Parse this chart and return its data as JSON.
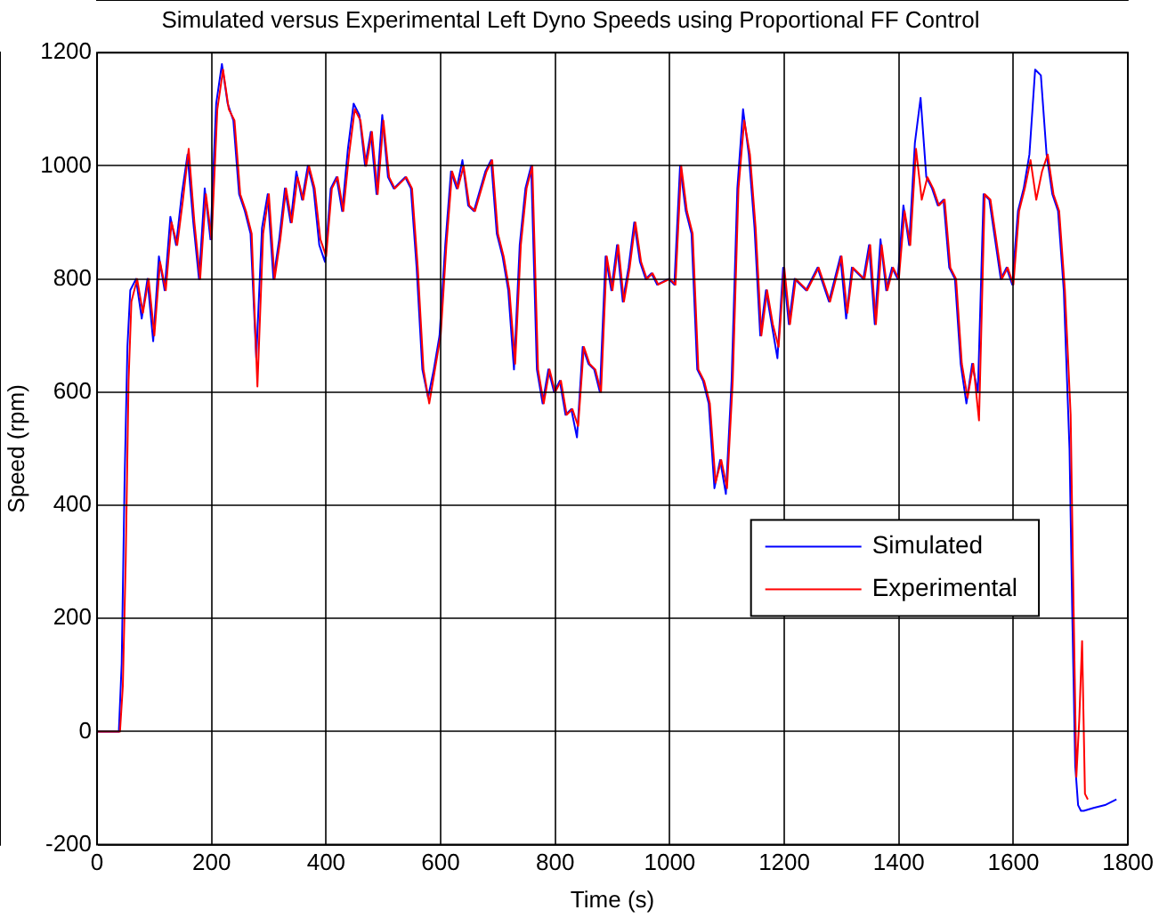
{
  "chart_data": {
    "type": "line",
    "title": "Simulated versus Experimental Left Dyno Speeds using Proportional FF Control",
    "xlabel": "Time (s)",
    "ylabel": "Speed (rpm)",
    "xlim": [
      0,
      1800
    ],
    "xticks": [
      0,
      200,
      400,
      600,
      800,
      1000,
      1200,
      1400,
      1600,
      1800
    ],
    "ylim": [
      -200,
      1200
    ],
    "yticks": [
      -200,
      0,
      200,
      400,
      600,
      800,
      1000,
      1200
    ],
    "grid": true,
    "legend": "right",
    "marker": "none",
    "line_style": "solid",
    "series": [
      {
        "name": "Simulated",
        "color": "#0000ff",
        "x": [
          0,
          38,
          43,
          48,
          53,
          58,
          68,
          78,
          88,
          98,
          108,
          118,
          128,
          138,
          148,
          158,
          168,
          178,
          188,
          198,
          208,
          218,
          228,
          238,
          248,
          258,
          268,
          278,
          288,
          298,
          308,
          318,
          328,
          338,
          348,
          358,
          368,
          378,
          388,
          398,
          408,
          418,
          428,
          438,
          448,
          458,
          468,
          478,
          488,
          498,
          508,
          518,
          538,
          548,
          558,
          568,
          578,
          588,
          598,
          608,
          618,
          628,
          638,
          648,
          658,
          678,
          688,
          698,
          708,
          718,
          728,
          738,
          748,
          758,
          768,
          778,
          788,
          798,
          808,
          818,
          828,
          838,
          848,
          858,
          868,
          878,
          888,
          898,
          908,
          918,
          928,
          938,
          948,
          958,
          968,
          978,
          998,
          1008,
          1018,
          1028,
          1038,
          1048,
          1058,
          1068,
          1078,
          1088,
          1098,
          1108,
          1118,
          1128,
          1138,
          1148,
          1158,
          1168,
          1178,
          1188,
          1198,
          1208,
          1218,
          1238,
          1258,
          1278,
          1298,
          1308,
          1318,
          1338,
          1348,
          1358,
          1368,
          1378,
          1388,
          1398,
          1408,
          1418,
          1428,
          1438,
          1448,
          1458,
          1468,
          1478,
          1488,
          1498,
          1508,
          1518,
          1528,
          1538,
          1548,
          1558,
          1568,
          1578,
          1588,
          1598,
          1608,
          1618,
          1628,
          1638,
          1648,
          1658,
          1668,
          1678,
          1688,
          1698,
          1703,
          1708,
          1713,
          1718,
          1723,
          1740,
          1760,
          1780
        ],
        "values": [
          0,
          0,
          120,
          440,
          680,
          780,
          800,
          730,
          800,
          690,
          840,
          780,
          910,
          860,
          950,
          1020,
          900,
          800,
          960,
          870,
          1110,
          1180,
          1110,
          1080,
          950,
          920,
          880,
          660,
          890,
          950,
          800,
          870,
          960,
          900,
          990,
          940,
          1000,
          960,
          860,
          830,
          960,
          980,
          920,
          1030,
          1110,
          1090,
          1000,
          1060,
          950,
          1090,
          980,
          960,
          980,
          960,
          820,
          640,
          590,
          640,
          700,
          860,
          990,
          960,
          1010,
          930,
          920,
          990,
          1010,
          880,
          840,
          780,
          640,
          860,
          960,
          1000,
          640,
          580,
          640,
          600,
          620,
          560,
          570,
          520,
          680,
          650,
          640,
          600,
          840,
          780,
          860,
          760,
          820,
          900,
          830,
          800,
          810,
          790,
          800,
          790,
          1000,
          920,
          880,
          640,
          620,
          580,
          430,
          480,
          420,
          620,
          960,
          1100,
          1020,
          890,
          700,
          780,
          720,
          660,
          820,
          720,
          800,
          780,
          820,
          760,
          840,
          730,
          820,
          800,
          860,
          720,
          870,
          780,
          820,
          800,
          930,
          860,
          1040,
          1120,
          980,
          960,
          930,
          940,
          820,
          800,
          650,
          580,
          650,
          600,
          950,
          940,
          870,
          800,
          820,
          790,
          920,
          960,
          1020,
          1170,
          1160,
          1020,
          950,
          920,
          780,
          500,
          200,
          -60,
          -130,
          -140,
          -140,
          -135,
          -130,
          -120
        ]
      },
      {
        "name": "Experimental",
        "color": "#ff0000",
        "x": [
          0,
          40,
          45,
          50,
          55,
          60,
          70,
          80,
          90,
          100,
          110,
          120,
          130,
          140,
          150,
          160,
          170,
          180,
          190,
          200,
          210,
          220,
          230,
          240,
          250,
          260,
          270,
          280,
          290,
          300,
          310,
          320,
          330,
          340,
          350,
          360,
          370,
          380,
          390,
          400,
          410,
          420,
          430,
          440,
          450,
          460,
          470,
          480,
          490,
          500,
          510,
          520,
          540,
          550,
          560,
          570,
          580,
          590,
          600,
          610,
          620,
          630,
          640,
          650,
          660,
          680,
          690,
          700,
          710,
          720,
          730,
          740,
          750,
          760,
          770,
          780,
          790,
          800,
          810,
          820,
          830,
          840,
          850,
          860,
          870,
          880,
          890,
          900,
          910,
          920,
          930,
          940,
          950,
          960,
          970,
          980,
          1000,
          1010,
          1020,
          1030,
          1040,
          1050,
          1060,
          1070,
          1080,
          1090,
          1100,
          1110,
          1120,
          1130,
          1140,
          1150,
          1160,
          1170,
          1180,
          1190,
          1200,
          1210,
          1220,
          1240,
          1260,
          1280,
          1300,
          1310,
          1320,
          1340,
          1350,
          1360,
          1370,
          1380,
          1390,
          1400,
          1410,
          1420,
          1430,
          1440,
          1450,
          1460,
          1470,
          1480,
          1490,
          1500,
          1510,
          1520,
          1530,
          1540,
          1550,
          1560,
          1570,
          1580,
          1590,
          1600,
          1610,
          1620,
          1630,
          1640,
          1650,
          1660,
          1670,
          1680,
          1690,
          1700,
          1705,
          1710,
          1715,
          1720,
          1725,
          1730
        ],
        "values": [
          0,
          0,
          80,
          300,
          620,
          760,
          800,
          740,
          800,
          700,
          830,
          780,
          900,
          860,
          940,
          1030,
          900,
          800,
          950,
          870,
          1100,
          1170,
          1100,
          1080,
          950,
          920,
          880,
          610,
          880,
          950,
          800,
          870,
          960,
          900,
          980,
          940,
          1000,
          960,
          870,
          840,
          960,
          980,
          920,
          1020,
          1100,
          1080,
          1000,
          1060,
          950,
          1080,
          980,
          960,
          980,
          960,
          820,
          640,
          580,
          640,
          700,
          860,
          990,
          960,
          1000,
          930,
          920,
          990,
          1010,
          880,
          840,
          780,
          650,
          860,
          960,
          1000,
          640,
          580,
          640,
          600,
          620,
          560,
          570,
          540,
          680,
          650,
          640,
          600,
          840,
          780,
          860,
          760,
          820,
          900,
          830,
          800,
          810,
          790,
          800,
          790,
          1000,
          920,
          880,
          640,
          620,
          580,
          440,
          480,
          430,
          620,
          960,
          1080,
          1020,
          890,
          700,
          780,
          720,
          680,
          820,
          720,
          800,
          780,
          820,
          760,
          840,
          740,
          820,
          800,
          860,
          720,
          860,
          780,
          820,
          800,
          920,
          860,
          1030,
          940,
          980,
          960,
          930,
          940,
          820,
          800,
          650,
          590,
          650,
          550,
          950,
          940,
          870,
          800,
          820,
          790,
          920,
          960,
          1010,
          940,
          990,
          1020,
          950,
          920,
          780,
          560,
          230,
          -80,
          20,
          160,
          -110,
          -120
        ]
      }
    ]
  }
}
